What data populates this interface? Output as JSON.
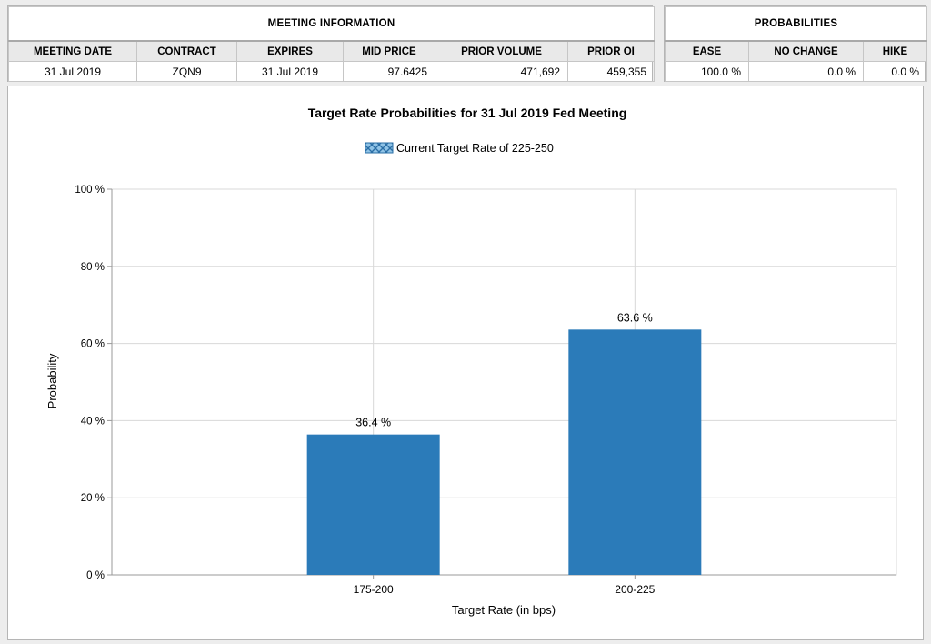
{
  "meeting_info": {
    "title": "MEETING INFORMATION",
    "columns": [
      "MEETING DATE",
      "CONTRACT",
      "EXPIRES",
      "MID PRICE",
      "PRIOR VOLUME",
      "PRIOR OI"
    ],
    "values": [
      "31 Jul 2019",
      "ZQN9",
      "31 Jul 2019",
      "97.6425",
      "471,692",
      "459,355"
    ]
  },
  "probabilities": {
    "title": "PROBABILITIES",
    "columns": [
      "EASE",
      "NO CHANGE",
      "HIKE"
    ],
    "values": [
      "100.0 %",
      "0.0 %",
      "0.0 %"
    ]
  },
  "chart_data": {
    "type": "bar",
    "title": "Target Rate Probabilities for 31 Jul 2019 Fed Meeting",
    "legend": "Current Target Rate of 225-250",
    "legend_position": "top-center",
    "xlabel": "Target Rate (in bps)",
    "ylabel": "Probability",
    "categories": [
      "175-200",
      "200-225"
    ],
    "values": [
      36.4,
      63.6
    ],
    "value_labels": [
      "36.4 %",
      "63.6 %"
    ],
    "ylim": [
      0,
      100
    ],
    "yticks": [
      0,
      20,
      40,
      60,
      80,
      100
    ],
    "ytick_labels": [
      "0 %",
      "20 %",
      "40 %",
      "60 %",
      "80 %",
      "100 %"
    ],
    "grid": true,
    "bar_color": "#2b7bb9",
    "grid_color": "#d8d8d8"
  }
}
